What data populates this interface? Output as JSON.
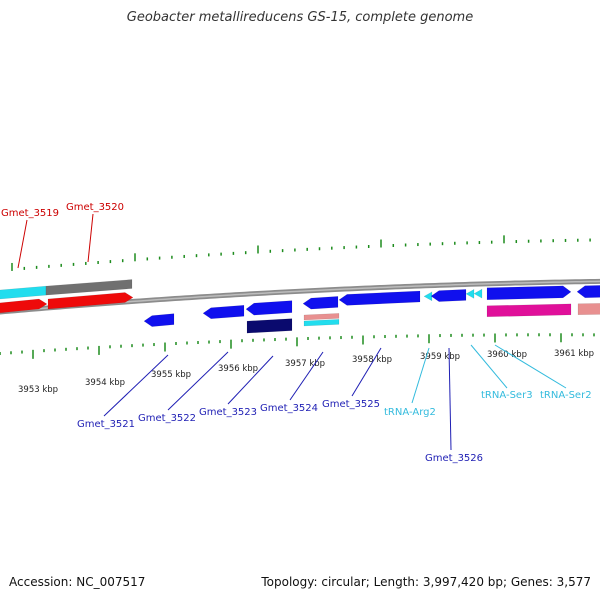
{
  "title": "Geobacter metallireducens GS-15, complete genome",
  "footer": {
    "accession": "Accession: NC_007517",
    "topology": "Topology: circular; Length: 3,997,420 bp; Genes: 3,577"
  },
  "colors": {
    "backbone": "#8c8c8c",
    "tick": "#1e8c1e",
    "red_label": "#cc0000",
    "blue_label": "#1f1fb4",
    "cyan_label": "#33bbdd",
    "gene_blue": "#1010ee",
    "gene_navy": "#0a0a6e",
    "gene_red": "#ee0a0a",
    "gene_cyan": "#22ddee",
    "gene_gray": "#707070",
    "gene_magenta": "#e0109a",
    "gene_pink": "#e89090"
  },
  "scale_labels": [
    "3953 kbp",
    "3954 kbp",
    "3955 kbp",
    "3956 kbp",
    "3957 kbp",
    "3958 kbp",
    "3959 kbp",
    "3960 kbp",
    "3961 kbp"
  ],
  "gene_labels": [
    {
      "text": "Gmet_3519",
      "color": "red"
    },
    {
      "text": "Gmet_3520",
      "color": "red"
    },
    {
      "text": "Gmet_3521",
      "color": "blue"
    },
    {
      "text": "Gmet_3522",
      "color": "blue"
    },
    {
      "text": "Gmet_3523",
      "color": "blue"
    },
    {
      "text": "Gmet_3524",
      "color": "blue"
    },
    {
      "text": "Gmet_3525",
      "color": "blue"
    },
    {
      "text": "tRNA-Arg2",
      "color": "cyan"
    },
    {
      "text": "Gmet_3526",
      "color": "blue"
    },
    {
      "text": "tRNA-Ser3",
      "color": "cyan"
    },
    {
      "text": "tRNA-Ser2",
      "color": "cyan"
    }
  ]
}
